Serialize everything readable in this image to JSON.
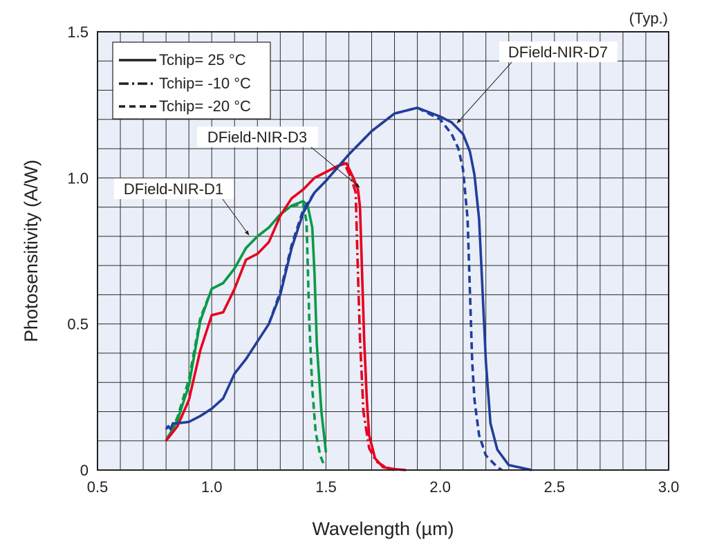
{
  "chart_data": {
    "type": "line",
    "title": "",
    "note": "(Typ.)",
    "xlabel": "Wavelength (µm)",
    "ylabel": "Photosensitivity (A/W)",
    "xlim": [
      0.5,
      3.0
    ],
    "ylim": [
      0,
      1.5
    ],
    "xticks": [
      "0.5",
      "1.0",
      "1.5",
      "2.0",
      "2.5",
      "3.0"
    ],
    "xtick_values": [
      0.5,
      1.0,
      1.5,
      2.0,
      2.5,
      3.0
    ],
    "yticks": [
      "0",
      "0.5",
      "1.0",
      "1.5"
    ],
    "ytick_values": [
      0,
      0.5,
      1.0,
      1.5
    ],
    "grid": true,
    "grid_step": {
      "x": 0.1,
      "y": 0.1
    },
    "plot_background": "#e9eef8",
    "legend": {
      "placement": "top-left",
      "entries": [
        {
          "label": "Tchip= 25 °C",
          "style": "solid"
        },
        {
          "label": "Tchip= -10 °C",
          "style": "dashdot"
        },
        {
          "label": "Tchip= -20 °C",
          "style": "dashed"
        }
      ]
    },
    "annotations": [
      {
        "text": "DField-NIR-D7",
        "points_to": [
          2.08,
          1.2
        ]
      },
      {
        "text": "DField-NIR-D3",
        "points_to": [
          1.64,
          0.95
        ]
      },
      {
        "text": "DField-NIR-D1",
        "points_to": [
          1.17,
          0.8
        ]
      }
    ],
    "series": [
      {
        "device": "DField-NIR-D1",
        "temp": "25",
        "style": "solid",
        "color": "#0a9a48",
        "x": [
          0.8,
          0.85,
          0.9,
          0.95,
          1.0,
          1.05,
          1.1,
          1.15,
          1.2,
          1.25,
          1.3,
          1.35,
          1.4,
          1.42,
          1.44,
          1.45,
          1.46,
          1.48,
          1.5
        ],
        "y": [
          0.1,
          0.17,
          0.29,
          0.51,
          0.62,
          0.64,
          0.69,
          0.76,
          0.8,
          0.83,
          0.875,
          0.905,
          0.92,
          0.905,
          0.83,
          0.67,
          0.43,
          0.2,
          0.06
        ]
      },
      {
        "device": "DField-NIR-D1",
        "temp": "-20",
        "style": "dashed",
        "color": "#0a9a48",
        "x": [
          0.8,
          0.85,
          0.9,
          0.95,
          1.0,
          1.05,
          1.1,
          1.15,
          1.2,
          1.25,
          1.3,
          1.35,
          1.4,
          1.415,
          1.427,
          1.44,
          1.455,
          1.475,
          1.49
        ],
        "y": [
          0.1,
          0.18,
          0.31,
          0.52,
          0.62,
          0.64,
          0.69,
          0.76,
          0.8,
          0.83,
          0.875,
          0.905,
          0.91,
          0.85,
          0.51,
          0.28,
          0.13,
          0.05,
          0.02
        ]
      },
      {
        "device": "DField-NIR-D3",
        "temp": "25",
        "style": "solid",
        "color": "#e6001e",
        "x": [
          0.8,
          0.85,
          0.9,
          0.95,
          1.0,
          1.05,
          1.1,
          1.15,
          1.2,
          1.25,
          1.3,
          1.35,
          1.4,
          1.45,
          1.5,
          1.55,
          1.59,
          1.62,
          1.64,
          1.649,
          1.657,
          1.667,
          1.679,
          1.689,
          1.715,
          1.75,
          1.8,
          1.85
        ],
        "y": [
          0.1,
          0.15,
          0.24,
          0.41,
          0.53,
          0.54,
          0.62,
          0.72,
          0.74,
          0.78,
          0.87,
          0.93,
          0.96,
          1.0,
          1.02,
          1.04,
          1.05,
          1.0,
          0.96,
          0.9,
          0.7,
          0.45,
          0.24,
          0.12,
          0.04,
          0.01,
          0.003,
          0
        ]
      },
      {
        "device": "DField-NIR-D3",
        "temp": "-10",
        "style": "dashdot",
        "color": "#e6001e",
        "x": [
          1.45,
          1.5,
          1.55,
          1.58,
          1.61,
          1.63,
          1.639,
          1.649,
          1.664,
          1.689,
          1.72,
          1.76,
          1.8
        ],
        "y": [
          1.0,
          1.02,
          1.04,
          1.05,
          1.0,
          0.95,
          0.7,
          0.45,
          0.2,
          0.075,
          0.03,
          0.01,
          0
        ]
      },
      {
        "device": "DField-NIR-D7",
        "temp": "25",
        "style": "solid",
        "color": "#213e9a",
        "x": [
          0.8,
          0.81,
          0.82,
          0.83,
          0.85,
          0.9,
          0.95,
          1.0,
          1.05,
          1.1,
          1.15,
          1.2,
          1.25,
          1.3,
          1.35,
          1.4,
          1.45,
          1.5,
          1.6,
          1.7,
          1.8,
          1.9,
          2.0,
          2.05,
          2.1,
          2.13,
          2.15,
          2.17,
          2.18,
          2.2,
          2.22,
          2.25,
          2.3,
          2.4
        ],
        "y": [
          0.14,
          0.15,
          0.14,
          0.16,
          0.16,
          0.165,
          0.185,
          0.21,
          0.245,
          0.33,
          0.38,
          0.44,
          0.5,
          0.6,
          0.76,
          0.88,
          0.95,
          0.99,
          1.08,
          1.16,
          1.22,
          1.24,
          1.21,
          1.19,
          1.15,
          1.09,
          1.01,
          0.86,
          0.7,
          0.37,
          0.16,
          0.07,
          0.017,
          0
        ]
      },
      {
        "device": "DField-NIR-D7",
        "temp": "-20",
        "style": "dashed",
        "color": "#213e9a",
        "x": [
          1.25,
          1.3,
          1.35,
          1.4,
          1.45,
          1.5,
          1.6,
          1.7,
          1.8,
          1.9,
          2.0,
          2.05,
          2.08,
          2.1,
          2.12,
          2.13,
          2.14,
          2.15,
          2.17,
          2.2,
          2.25,
          2.27
        ],
        "y": [
          0.5,
          0.61,
          0.77,
          0.89,
          0.95,
          0.99,
          1.08,
          1.16,
          1.22,
          1.24,
          1.2,
          1.15,
          1.1,
          1.03,
          0.86,
          0.61,
          0.37,
          0.24,
          0.12,
          0.05,
          0.01,
          0
        ]
      }
    ]
  }
}
